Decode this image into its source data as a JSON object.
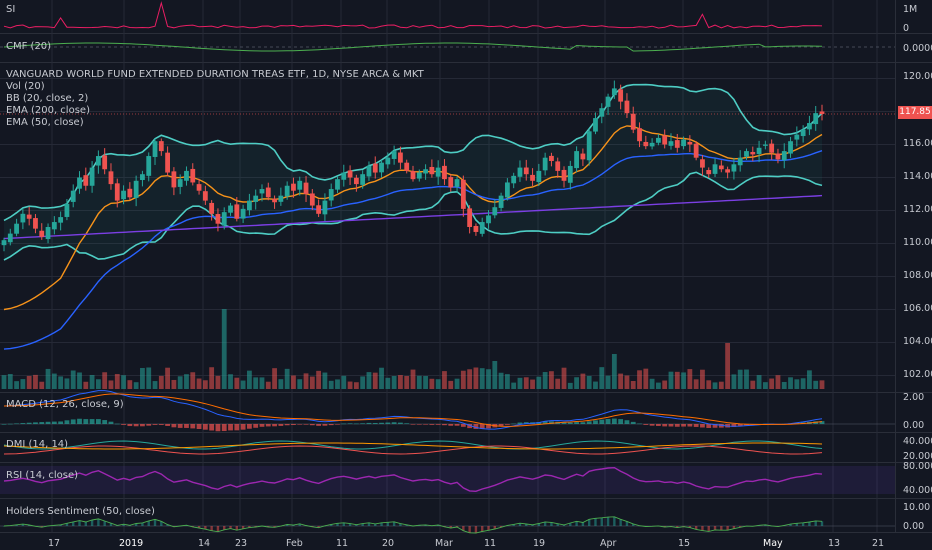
{
  "instrument": {
    "title": "VANGUARD WORLD FUND EXTENDED DURATION TREAS ETF, 1D, NYSE ARCA & MKT",
    "last_price": "117.85"
  },
  "indicators": {
    "vol": "Vol (20)",
    "bb": "BB (20, close, 2)",
    "ema200": "EMA (200, close)",
    "ema50": "EMA (50, close)"
  },
  "panes": {
    "si": {
      "label": "SI",
      "axis": [
        "1M",
        "0"
      ]
    },
    "cmf": {
      "label": "CMF (20)",
      "axis": [
        "0.0000"
      ]
    },
    "macd": {
      "label": "MACD (12, 26, close, 9)",
      "axis": [
        "2.00",
        "0.00"
      ]
    },
    "dmi": {
      "label": "DMI (14, 14)",
      "axis": [
        "40.0000",
        "20.0000"
      ]
    },
    "rsi": {
      "label": "RSI (14, close)",
      "axis": [
        "80.0000",
        "40.0000"
      ]
    },
    "holders": {
      "label": "Holders Sentiment (50, close)",
      "axis": [
        "10.00",
        "0.00"
      ]
    }
  },
  "price_axis": [
    "120.00",
    "118.00",
    "116.00",
    "114.00",
    "112.00",
    "110.00",
    "108.00",
    "106.00",
    "104.00",
    "102.00"
  ],
  "x_axis": [
    "17",
    "2019",
    "14",
    "23",
    "Feb",
    "11",
    "20",
    "Mar",
    "11",
    "19",
    "Apr",
    "15",
    "May",
    "13",
    "21"
  ],
  "colors": {
    "background": "#131722",
    "up": "#26a69a",
    "down": "#ef5350",
    "bb": "#4ecdc4",
    "ema50": "#f7931a",
    "ema200": "#2962ff",
    "ema_long": "#7b3fe4",
    "rsi": "#9c27b0",
    "grid": "#252936"
  },
  "chart_data": {
    "type": "candlestick",
    "ylim": [
      101,
      121
    ],
    "close": [
      110.2,
      110.6,
      111.2,
      111.8,
      111.5,
      110.9,
      110.4,
      111.0,
      111.3,
      111.6,
      112.4,
      113.2,
      114.0,
      113.5,
      114.6,
      115.3,
      114.5,
      113.6,
      112.6,
      113.2,
      112.8,
      113.8,
      114.2,
      115.3,
      116.2,
      115.6,
      114.3,
      113.4,
      113.9,
      114.4,
      113.7,
      113.2,
      112.6,
      111.8,
      111.2,
      111.9,
      112.3,
      111.5,
      112.1,
      112.6,
      112.9,
      113.3,
      112.8,
      112.5,
      112.9,
      113.5,
      113.2,
      113.8,
      113.0,
      112.3,
      111.8,
      112.6,
      113.3,
      113.9,
      114.3,
      114.0,
      113.6,
      114.2,
      114.7,
      114.3,
      114.9,
      115.2,
      115.6,
      114.9,
      114.4,
      113.9,
      114.3,
      114.5,
      114.2,
      114.6,
      113.9,
      113.4,
      113.9,
      112.1,
      111.0,
      110.7,
      111.3,
      111.7,
      112.2,
      112.9,
      113.7,
      114.1,
      114.6,
      114.2,
      113.8,
      114.4,
      115.2,
      115.0,
      114.4,
      113.8,
      114.7,
      115.6,
      115.1,
      116.8,
      117.6,
      118.2,
      118.9,
      119.4,
      118.6,
      117.9,
      116.9,
      116.2,
      115.9,
      116.1,
      116.4,
      116.0,
      116.2,
      115.8,
      116.3,
      116.0,
      115.2,
      114.6,
      114.2,
      114.8,
      114.5,
      114.3,
      114.8,
      115.2,
      115.6,
      115.4,
      115.8,
      116.0,
      115.5,
      115.1,
      115.6,
      116.2,
      116.6,
      116.9,
      117.3,
      117.9,
      117.85
    ]
  }
}
